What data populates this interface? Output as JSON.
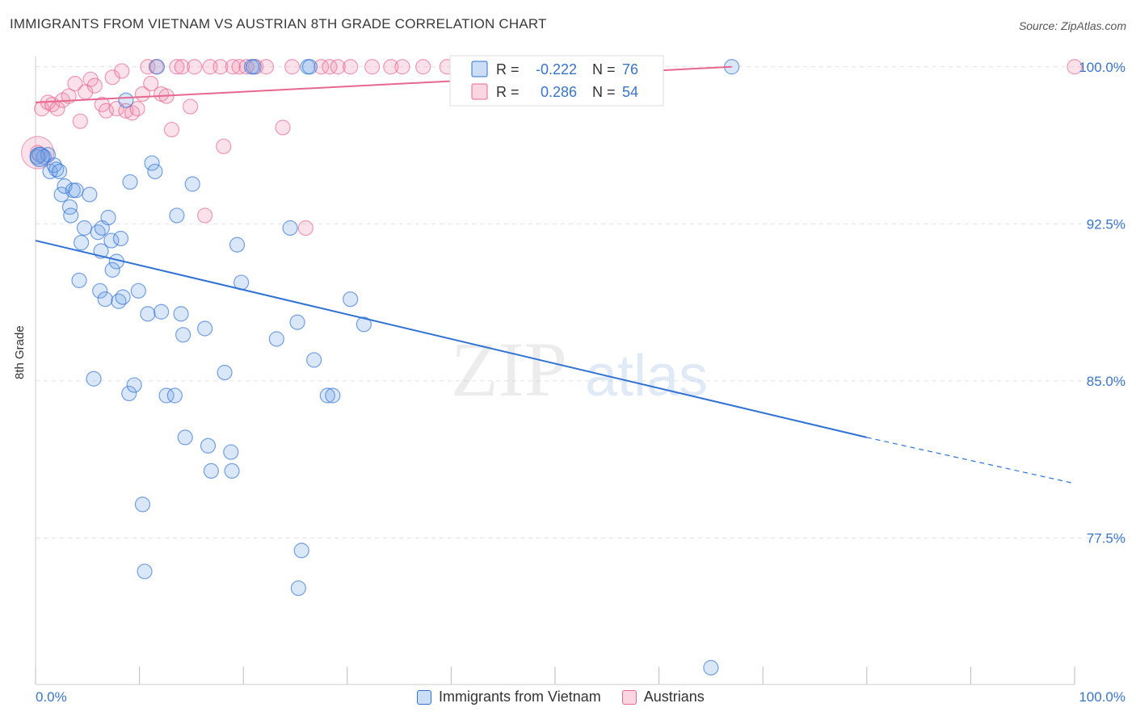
{
  "header": {
    "title": "IMMIGRANTS FROM VIETNAM VS AUSTRIAN 8TH GRADE CORRELATION CHART",
    "source": "Source: ZipAtlas.com"
  },
  "watermark": {
    "zip": "ZIP",
    "atlas": "atlas"
  },
  "colors": {
    "blue": "#6aa0e6",
    "blue_line": "#2f72d4",
    "pink": "#f08aaa",
    "pink_line": "#e8678f",
    "tick_text": "#3a74c9"
  },
  "stats_box": {
    "rows": [
      {
        "r_label": "R =",
        "r_value": "-0.222",
        "n_label": "N =",
        "n_value": "76"
      },
      {
        "r_label": "R =",
        "r_value": "0.286",
        "n_label": "N =",
        "n_value": "54"
      }
    ]
  },
  "legend": {
    "items": [
      "Immigrants from Vietnam",
      "Austrians"
    ]
  },
  "chart_data": {
    "type": "scatter",
    "title": "IMMIGRANTS FROM VIETNAM VS AUSTRIAN 8TH GRADE CORRELATION CHART",
    "xlabel": "",
    "ylabel": "8th Grade",
    "xlim": [
      0,
      100
    ],
    "ylim": [
      70.5,
      100.8
    ],
    "x_tick_labels": [
      "0.0%",
      "100.0%"
    ],
    "y_ticks": [
      77.5,
      85.0,
      92.5,
      100.0
    ],
    "y_tick_labels": [
      "77.5%",
      "85.0%",
      "92.5%",
      "100.0%"
    ],
    "grid": true,
    "legend_position": "bottom",
    "series": [
      {
        "name": "Immigrants from Vietnam",
        "R": -0.222,
        "N": 76,
        "trend": {
          "x0": 0,
          "y0": 91.7,
          "x1": 80,
          "y1": 82.3,
          "dashed_to_x": 100,
          "dashed_to_y": 80.1
        },
        "points": [
          [
            0.4,
            95.8
          ],
          [
            0.8,
            95.7
          ],
          [
            1.2,
            95.8
          ],
          [
            1.4,
            95.0
          ],
          [
            1.8,
            95.3
          ],
          [
            2.0,
            95.1
          ],
          [
            2.3,
            95.0
          ],
          [
            2.5,
            93.9
          ],
          [
            2.8,
            94.3
          ],
          [
            3.3,
            93.3
          ],
          [
            3.4,
            92.9
          ],
          [
            3.6,
            94.1
          ],
          [
            3.9,
            94.1
          ],
          [
            4.2,
            89.8
          ],
          [
            4.4,
            91.6
          ],
          [
            4.7,
            92.3
          ],
          [
            5.2,
            93.9
          ],
          [
            5.6,
            85.1
          ],
          [
            6.0,
            92.1
          ],
          [
            6.2,
            89.3
          ],
          [
            6.3,
            91.2
          ],
          [
            6.4,
            92.3
          ],
          [
            6.7,
            88.9
          ],
          [
            7.0,
            92.8
          ],
          [
            7.3,
            91.7
          ],
          [
            7.4,
            90.3
          ],
          [
            7.8,
            90.7
          ],
          [
            8.0,
            88.8
          ],
          [
            8.2,
            91.8
          ],
          [
            8.4,
            89.0
          ],
          [
            8.7,
            98.4
          ],
          [
            9.0,
            84.4
          ],
          [
            9.1,
            94.5
          ],
          [
            9.5,
            84.8
          ],
          [
            9.9,
            89.3
          ],
          [
            10.3,
            79.1
          ],
          [
            10.5,
            75.9
          ],
          [
            10.8,
            88.2
          ],
          [
            11.2,
            95.4
          ],
          [
            11.5,
            95.0
          ],
          [
            11.7,
            100.0
          ],
          [
            12.1,
            88.3
          ],
          [
            12.6,
            84.3
          ],
          [
            13.4,
            84.3
          ],
          [
            13.6,
            92.9
          ],
          [
            14.0,
            88.2
          ],
          [
            14.2,
            87.2
          ],
          [
            14.4,
            82.3
          ],
          [
            15.1,
            94.4
          ],
          [
            16.3,
            87.5
          ],
          [
            16.6,
            81.9
          ],
          [
            16.9,
            80.7
          ],
          [
            18.2,
            85.4
          ],
          [
            18.8,
            81.6
          ],
          [
            18.9,
            80.7
          ],
          [
            19.4,
            91.5
          ],
          [
            19.8,
            89.7
          ],
          [
            20.8,
            100.0
          ],
          [
            21.0,
            100.0
          ],
          [
            23.2,
            87.0
          ],
          [
            24.5,
            92.3
          ],
          [
            25.2,
            87.8
          ],
          [
            25.3,
            75.1
          ],
          [
            25.6,
            76.9
          ],
          [
            26.2,
            100.0
          ],
          [
            26.4,
            100.0
          ],
          [
            26.8,
            86.0
          ],
          [
            28.1,
            84.3
          ],
          [
            28.6,
            84.3
          ],
          [
            30.3,
            88.9
          ],
          [
            31.6,
            87.7
          ],
          [
            54.1,
            100.0
          ],
          [
            57.0,
            100.0
          ],
          [
            65.0,
            71.3
          ],
          [
            67.0,
            100.0
          ],
          [
            0.2,
            95.7
          ]
        ]
      },
      {
        "name": "Austrians",
        "R": 0.286,
        "N": 54,
        "trend": {
          "x0": 0,
          "y0": 98.3,
          "x1": 67,
          "y1": 100.0
        },
        "points": [
          [
            0.2,
            95.9
          ],
          [
            0.6,
            98.0
          ],
          [
            1.2,
            98.3
          ],
          [
            1.6,
            98.2
          ],
          [
            2.1,
            98.0
          ],
          [
            2.6,
            98.4
          ],
          [
            3.2,
            98.6
          ],
          [
            3.8,
            99.2
          ],
          [
            4.3,
            97.4
          ],
          [
            4.8,
            98.8
          ],
          [
            5.3,
            99.4
          ],
          [
            5.7,
            99.1
          ],
          [
            6.4,
            98.2
          ],
          [
            6.8,
            97.9
          ],
          [
            7.4,
            99.5
          ],
          [
            7.8,
            98.0
          ],
          [
            8.3,
            99.8
          ],
          [
            8.7,
            97.9
          ],
          [
            9.3,
            97.8
          ],
          [
            9.8,
            98.0
          ],
          [
            10.3,
            98.7
          ],
          [
            10.8,
            100.0
          ],
          [
            11.1,
            99.2
          ],
          [
            11.6,
            100.0
          ],
          [
            12.1,
            98.7
          ],
          [
            12.6,
            98.6
          ],
          [
            13.1,
            97.0
          ],
          [
            13.6,
            100.0
          ],
          [
            14.1,
            100.0
          ],
          [
            14.9,
            98.1
          ],
          [
            15.3,
            100.0
          ],
          [
            16.3,
            92.9
          ],
          [
            16.8,
            100.0
          ],
          [
            17.8,
            100.0
          ],
          [
            18.1,
            96.2
          ],
          [
            19.0,
            100.0
          ],
          [
            19.6,
            100.0
          ],
          [
            20.3,
            100.0
          ],
          [
            21.2,
            100.0
          ],
          [
            22.2,
            100.0
          ],
          [
            23.8,
            97.1
          ],
          [
            24.7,
            100.0
          ],
          [
            26.0,
            92.3
          ],
          [
            27.5,
            100.0
          ],
          [
            28.3,
            100.0
          ],
          [
            29.1,
            100.0
          ],
          [
            30.3,
            100.0
          ],
          [
            32.4,
            100.0
          ],
          [
            34.2,
            100.0
          ],
          [
            35.3,
            100.0
          ],
          [
            37.3,
            100.0
          ],
          [
            39.6,
            100.0
          ],
          [
            41.9,
            100.0
          ],
          [
            100.0,
            100.0
          ]
        ]
      }
    ]
  }
}
